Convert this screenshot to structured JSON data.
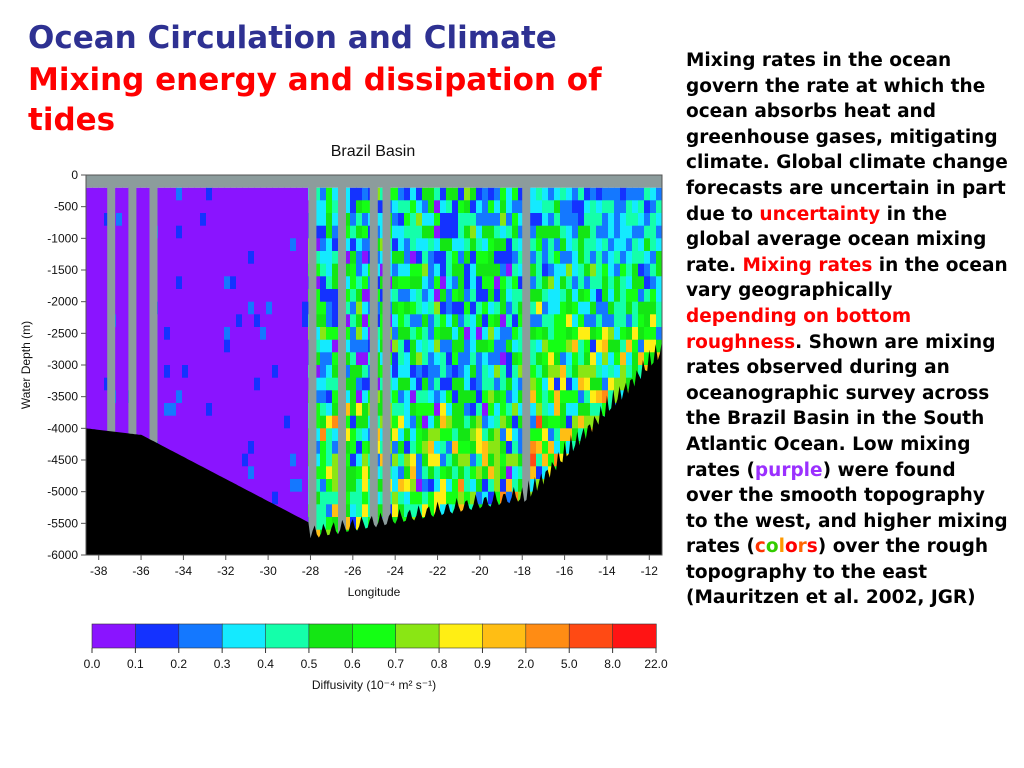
{
  "slide": {
    "title": "Ocean Circulation and Climate",
    "subtitle": "Mixing energy and dissipation of tides"
  },
  "paragraph": {
    "p1": "Mixing rates in the ocean govern the rate at which the ocean absorbs heat and greenhouse gases, mitigating climate. Global climate change forecasts are uncertain in part due to ",
    "hl_uncertainty": "uncertainty",
    "p2": " in the global average ocean mixing rate. ",
    "hl_mixing_rates": "Mixing rates",
    "p3": " in the ocean vary geographically ",
    "hl_depending": "depending on bottom roughness",
    "p4": ". Shown are mixing rates observed during an oceanographic survey across the Brazil Basin in the South Atlantic Ocean. Low mixing rates (",
    "hl_purple": "purple",
    "p5": ") were found over the smooth topography to the west, and higher mixing rates (",
    "hl_colors": [
      "c",
      "o",
      "l",
      "o",
      "r",
      "s"
    ],
    "p6": ") over the rough topography to the east (Mauritzen et al. 2002, JGR)"
  },
  "colors": {
    "title": "#2e3192",
    "highlight": "#ff0000",
    "purple": "#9b30ff",
    "seafloor": "#000000",
    "nodata": "#8c9c9c"
  },
  "chart_data": {
    "type": "heatmap",
    "title": "Brazil Basin",
    "xlabel": "Longitude",
    "ylabel": "Water Depth (m)",
    "xlim": [
      -38.6,
      -11.4
    ],
    "ylim": [
      -6000,
      0
    ],
    "x_ticks": [
      "-38",
      "-36",
      "-34",
      "-32",
      "-30",
      "-28",
      "-26",
      "-24",
      "-22",
      "-20",
      "-18",
      "-16",
      "-14",
      "-12"
    ],
    "y_ticks": [
      "0",
      "-500",
      "-1000",
      "-1500",
      "-2000",
      "-2500",
      "-3000",
      "-3500",
      "-4000",
      "-4500",
      "-5000",
      "-5500",
      "-6000"
    ],
    "colorbar": {
      "label": "Diffusivity (10⁻⁴ m² s⁻¹)",
      "ticks": [
        "0.0",
        "0.1",
        "0.2",
        "0.3",
        "0.4",
        "0.5",
        "0.6",
        "0.7",
        "0.8",
        "0.9",
        "2.0",
        "5.0",
        "8.0",
        "22.0"
      ],
      "colors": [
        "#8a14ff",
        "#1432ff",
        "#1478ff",
        "#14eaff",
        "#14ffaa",
        "#14e614",
        "#14ff14",
        "#8ae614",
        "#ffee14",
        "#ffbe14",
        "#ff8c14",
        "#ff4a14",
        "#ff1414"
      ]
    },
    "notes": "Low diffusivity (purple) in the west over smooth topography; higher diffusivity (colors) in the east over rough topography."
  }
}
